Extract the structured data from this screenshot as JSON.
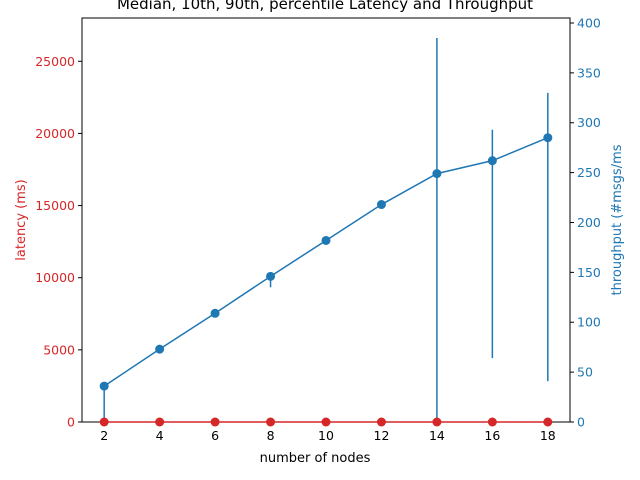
{
  "chart_data": {
    "type": "line",
    "title": "Median, 10th, 90th, percentile Latency and Throughput",
    "xlabel": "number of nodes",
    "ylabel_left": "latency (ms)",
    "ylabel_right": "throughput (#msgs/ms",
    "x": [
      2,
      4,
      6,
      8,
      10,
      12,
      14,
      16,
      18
    ],
    "xlim": [
      1.2,
      18.8
    ],
    "ylim_left": [
      0,
      28000
    ],
    "ylim_right": [
      0,
      405
    ],
    "xticks": [
      "2",
      "4",
      "6",
      "8",
      "10",
      "12",
      "14",
      "16",
      "18"
    ],
    "yticks_left": [
      "0",
      "5000",
      "10000",
      "15000",
      "20000",
      "25000"
    ],
    "yticks_left_values": [
      0,
      5000,
      10000,
      15000,
      20000,
      25000
    ],
    "yticks_right": [
      "0",
      "50",
      "100",
      "150",
      "200",
      "250",
      "300",
      "350",
      "400"
    ],
    "yticks_right_values": [
      0,
      50,
      100,
      150,
      200,
      250,
      300,
      350,
      400
    ],
    "grid": false,
    "series": [
      {
        "axis": "left",
        "color": "#d62728",
        "values": [
          0,
          0,
          0,
          0,
          0,
          0,
          0,
          0,
          0
        ],
        "low": [
          0,
          0,
          0,
          0,
          0,
          0,
          0,
          0,
          0
        ],
        "high": [
          0,
          0,
          0,
          0,
          0,
          0,
          0,
          0,
          0
        ]
      },
      {
        "axis": "right",
        "color": "#1f77b4",
        "values": [
          36,
          73,
          109,
          146,
          182,
          218,
          249,
          262,
          285
        ],
        "low": [
          0,
          72,
          108,
          135,
          181,
          217,
          0,
          64,
          41
        ],
        "high": [
          36,
          73,
          110,
          146,
          182,
          219,
          385,
          293,
          330
        ]
      }
    ]
  }
}
